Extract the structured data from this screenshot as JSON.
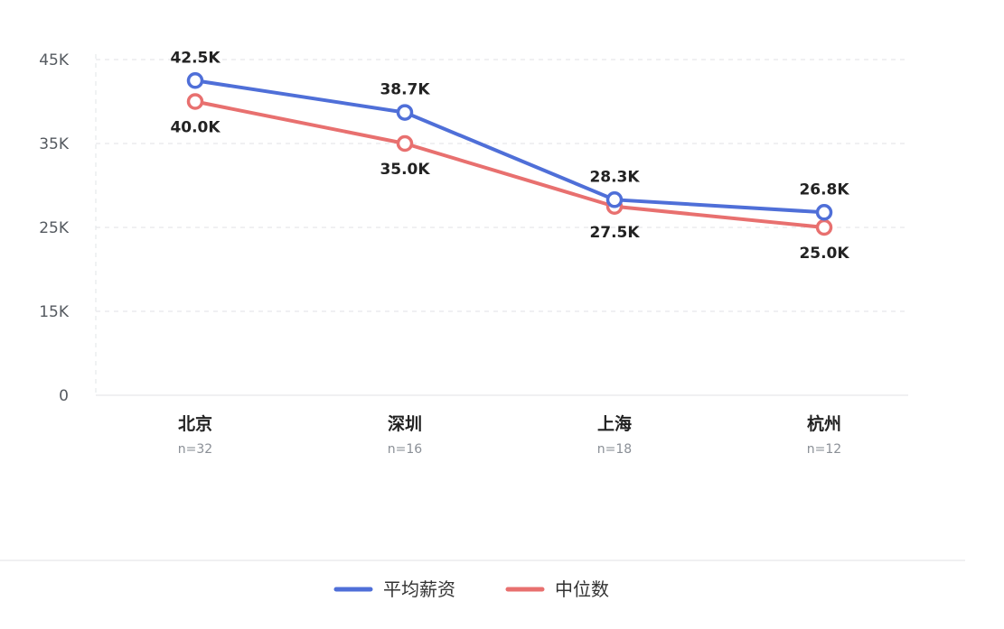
{
  "chart_data": {
    "type": "line",
    "categories": [
      "北京",
      "深圳",
      "上海",
      "杭州"
    ],
    "category_notes": [
      "n=32",
      "n=16",
      "n=18",
      "n=12"
    ],
    "y_ticks": [
      {
        "value": 0,
        "label": "0"
      },
      {
        "value": 15,
        "label": "15K"
      },
      {
        "value": 25,
        "label": "25K"
      },
      {
        "value": 35,
        "label": "35K"
      },
      {
        "value": 45,
        "label": "45K"
      }
    ],
    "series": [
      {
        "name": "平均薪资",
        "color": "#4f6fd8",
        "values": [
          42.5,
          38.7,
          28.3,
          26.8
        ],
        "labels": [
          "42.5K",
          "38.7K",
          "28.3K",
          "26.8K"
        ],
        "label_position": "above"
      },
      {
        "name": "中位数",
        "color": "#e8706f",
        "values": [
          40.0,
          35.0,
          27.5,
          25.0
        ],
        "labels": [
          "40.0K",
          "35.0K",
          "27.5K",
          "25.0K"
        ],
        "label_position": "below"
      }
    ],
    "grid": true,
    "legend_position": "bottom"
  }
}
